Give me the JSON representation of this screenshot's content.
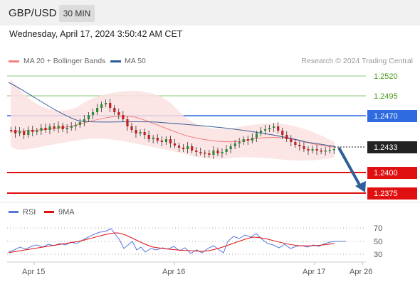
{
  "header": {
    "symbol": "GBP/USD",
    "timeframe": "30 MIN"
  },
  "datetime": "Wednesday, April 17, 2024 3:50:42 AM CET",
  "legend": {
    "ma20": {
      "label": "MA 20 + Bollinger Bands",
      "color": "#f08080"
    },
    "ma50": {
      "label": "MA 50",
      "color": "#2a5a9a"
    }
  },
  "credit": "Research © 2024 Trading Central",
  "levels": [
    {
      "value": "1.2520",
      "kind": "resistance_target",
      "color": "#4a9a1a"
    },
    {
      "value": "1.2495",
      "kind": "resistance_target",
      "color": "#4a9a1a"
    },
    {
      "value": "1.2470",
      "kind": "pivot",
      "color": "#2e6ae0"
    },
    {
      "value": "1.2433",
      "kind": "last_price",
      "color": "#222222"
    },
    {
      "value": "1.2400",
      "kind": "support_target",
      "color": "#e01010"
    },
    {
      "value": "1.2375",
      "kind": "support_target",
      "color": "#e01010"
    }
  ],
  "rsi": {
    "legend": {
      "rsi": "RSI",
      "ma": "9MA"
    },
    "colors": {
      "rsi": "#5577dd",
      "ma": "#e01010"
    },
    "ticks": [
      "70",
      "50",
      "30"
    ]
  },
  "xaxis": [
    "Apr 15",
    "Apr 16",
    "Apr 17",
    "Apr 26"
  ]
}
